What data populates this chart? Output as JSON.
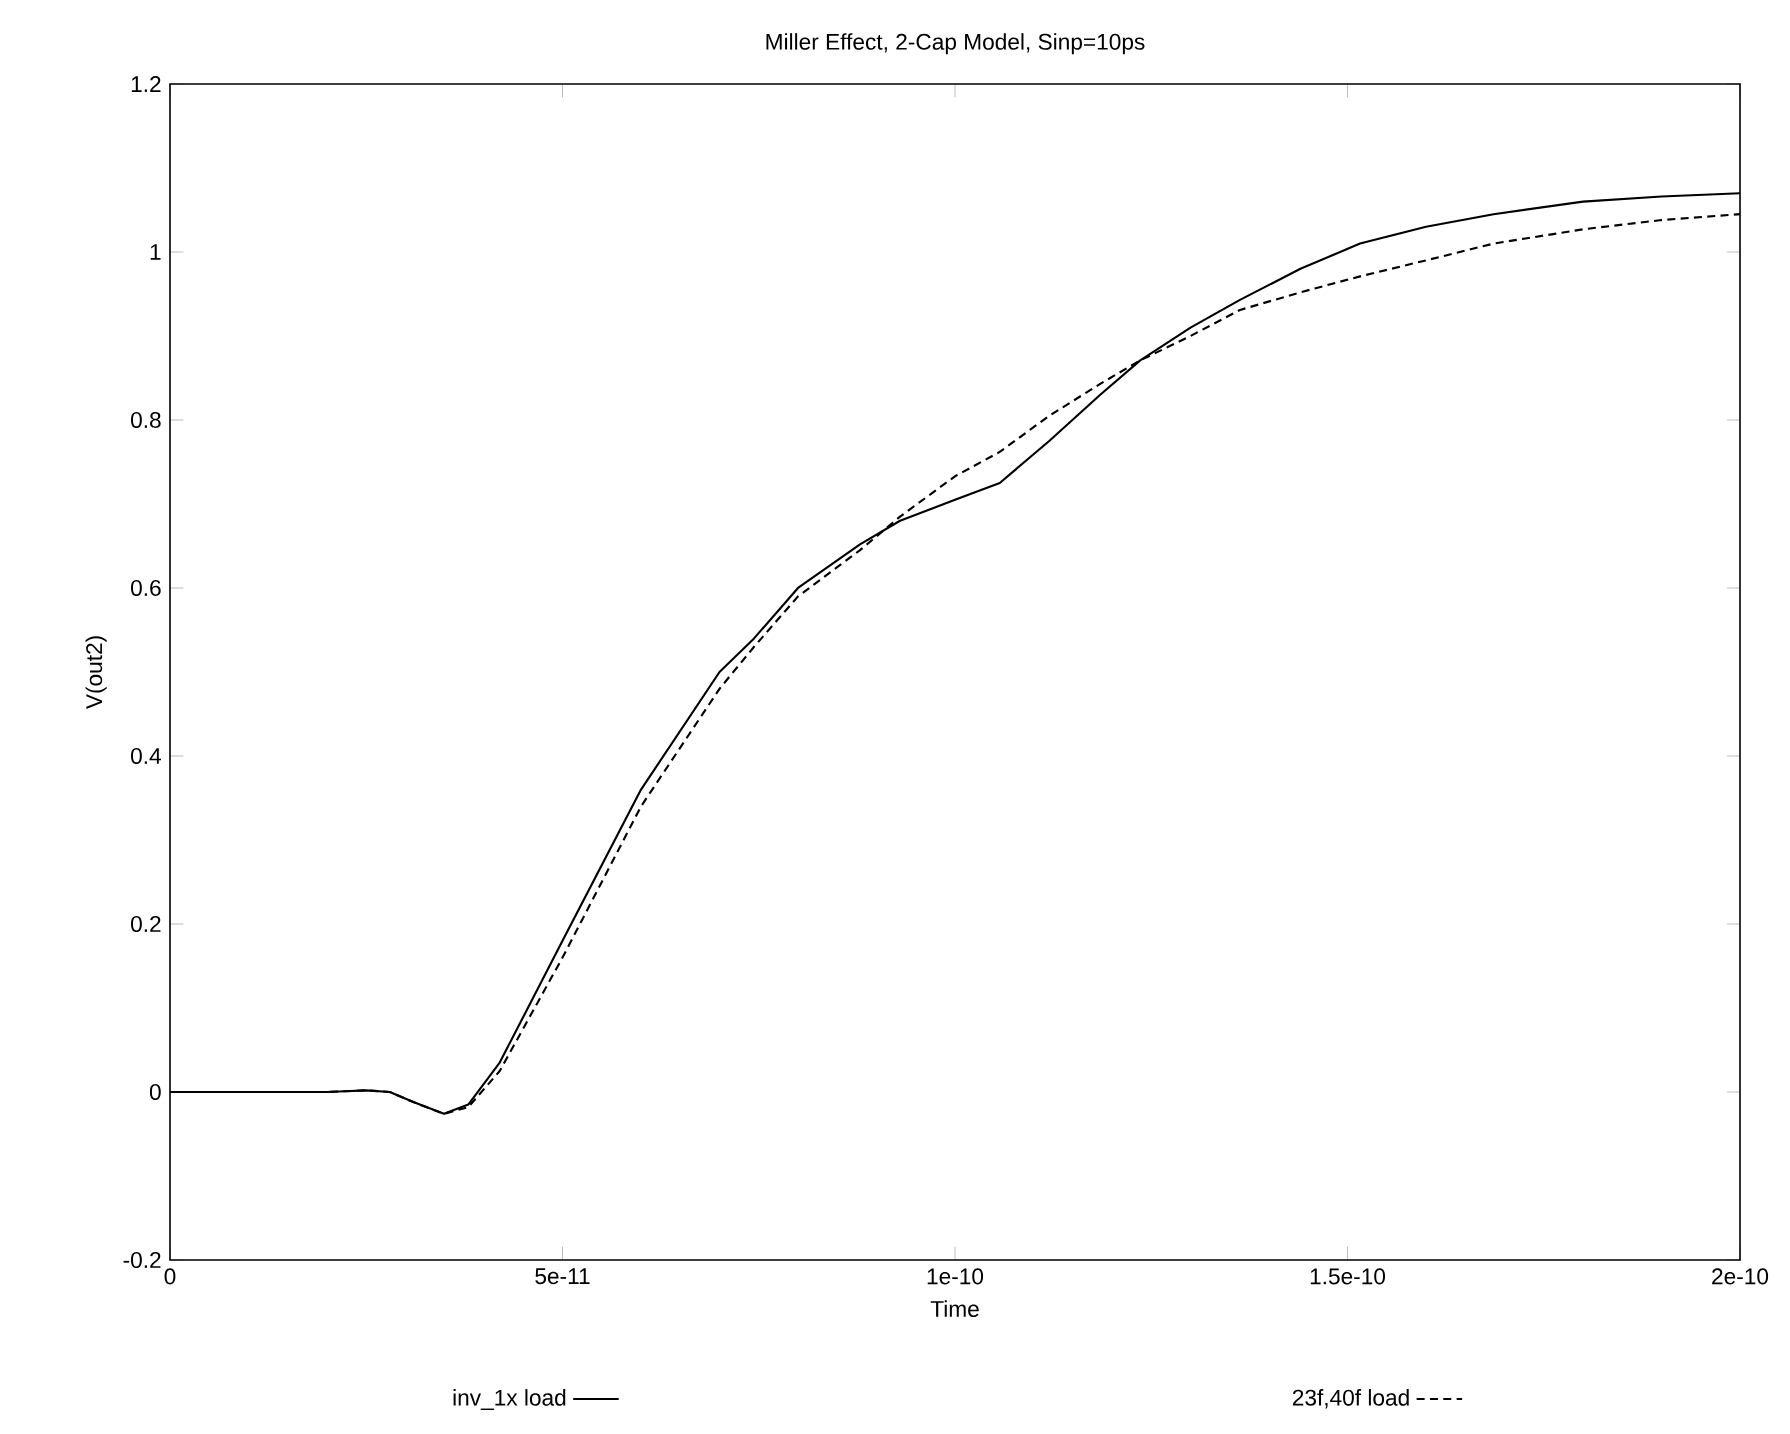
{
  "chart_data": {
    "type": "line",
    "title": "Miller Effect, 2-Cap Model, Sinp=10ps",
    "xlabel": "Time",
    "ylabel": "V(out2)",
    "x": [
      0,
      2e-11,
      2.5e-11,
      2.8e-11,
      3.1e-11,
      3.49e-11,
      3.8e-11,
      4.2e-11,
      5e-11,
      6e-11,
      7e-11,
      7.44e-11,
      8e-11,
      8.79e-11,
      9.3e-11,
      1e-10,
      1.057e-10,
      1.12e-10,
      1.185e-10,
      1.236e-10,
      1.3e-10,
      1.363e-10,
      1.44e-10,
      1.516e-10,
      1.6e-10,
      1.686e-10,
      1.8e-10,
      1.9e-10,
      2e-10
    ],
    "series": [
      {
        "name": "inv_1x load",
        "color": "#000000",
        "line_style": "solid",
        "values": [
          0,
          0,
          0.002,
          0,
          -0.012,
          -0.026,
          -0.015,
          0.035,
          0.18,
          0.36,
          0.5,
          0.54,
          0.6,
          0.652,
          0.68,
          0.705,
          0.725,
          0.775,
          0.83,
          0.871,
          0.91,
          0.943,
          0.98,
          1.01,
          1.03,
          1.045,
          1.06,
          1.066,
          1.07
        ]
      },
      {
        "name": "23f,40f load",
        "color": "#000000",
        "line_style": "dashed",
        "values": [
          0,
          0,
          0.002,
          0,
          -0.012,
          -0.026,
          -0.018,
          0.025,
          0.16,
          0.34,
          0.48,
          0.53,
          0.59,
          0.645,
          0.685,
          0.733,
          0.762,
          0.805,
          0.843,
          0.871,
          0.9,
          0.931,
          0.952,
          0.971,
          0.99,
          1.01,
          1.027,
          1.038,
          1.045
        ]
      }
    ],
    "xlim": [
      0,
      2e-10
    ],
    "ylim": [
      -0.2,
      1.2
    ],
    "xticks": [
      0,
      {
        "value": 5e-11,
        "label": "5e-11"
      },
      {
        "value": 1e-10,
        "label": "1e-10"
      },
      {
        "value": 1.5e-10,
        "label": "1.5e-10"
      },
      {
        "value": 2e-10,
        "label": "2e-10"
      }
    ],
    "yticks": [
      -0.2,
      0,
      0.2,
      0.4,
      0.6,
      0.8,
      1,
      1.2
    ],
    "grid": false,
    "legend": "bottom",
    "marker": "none"
  }
}
